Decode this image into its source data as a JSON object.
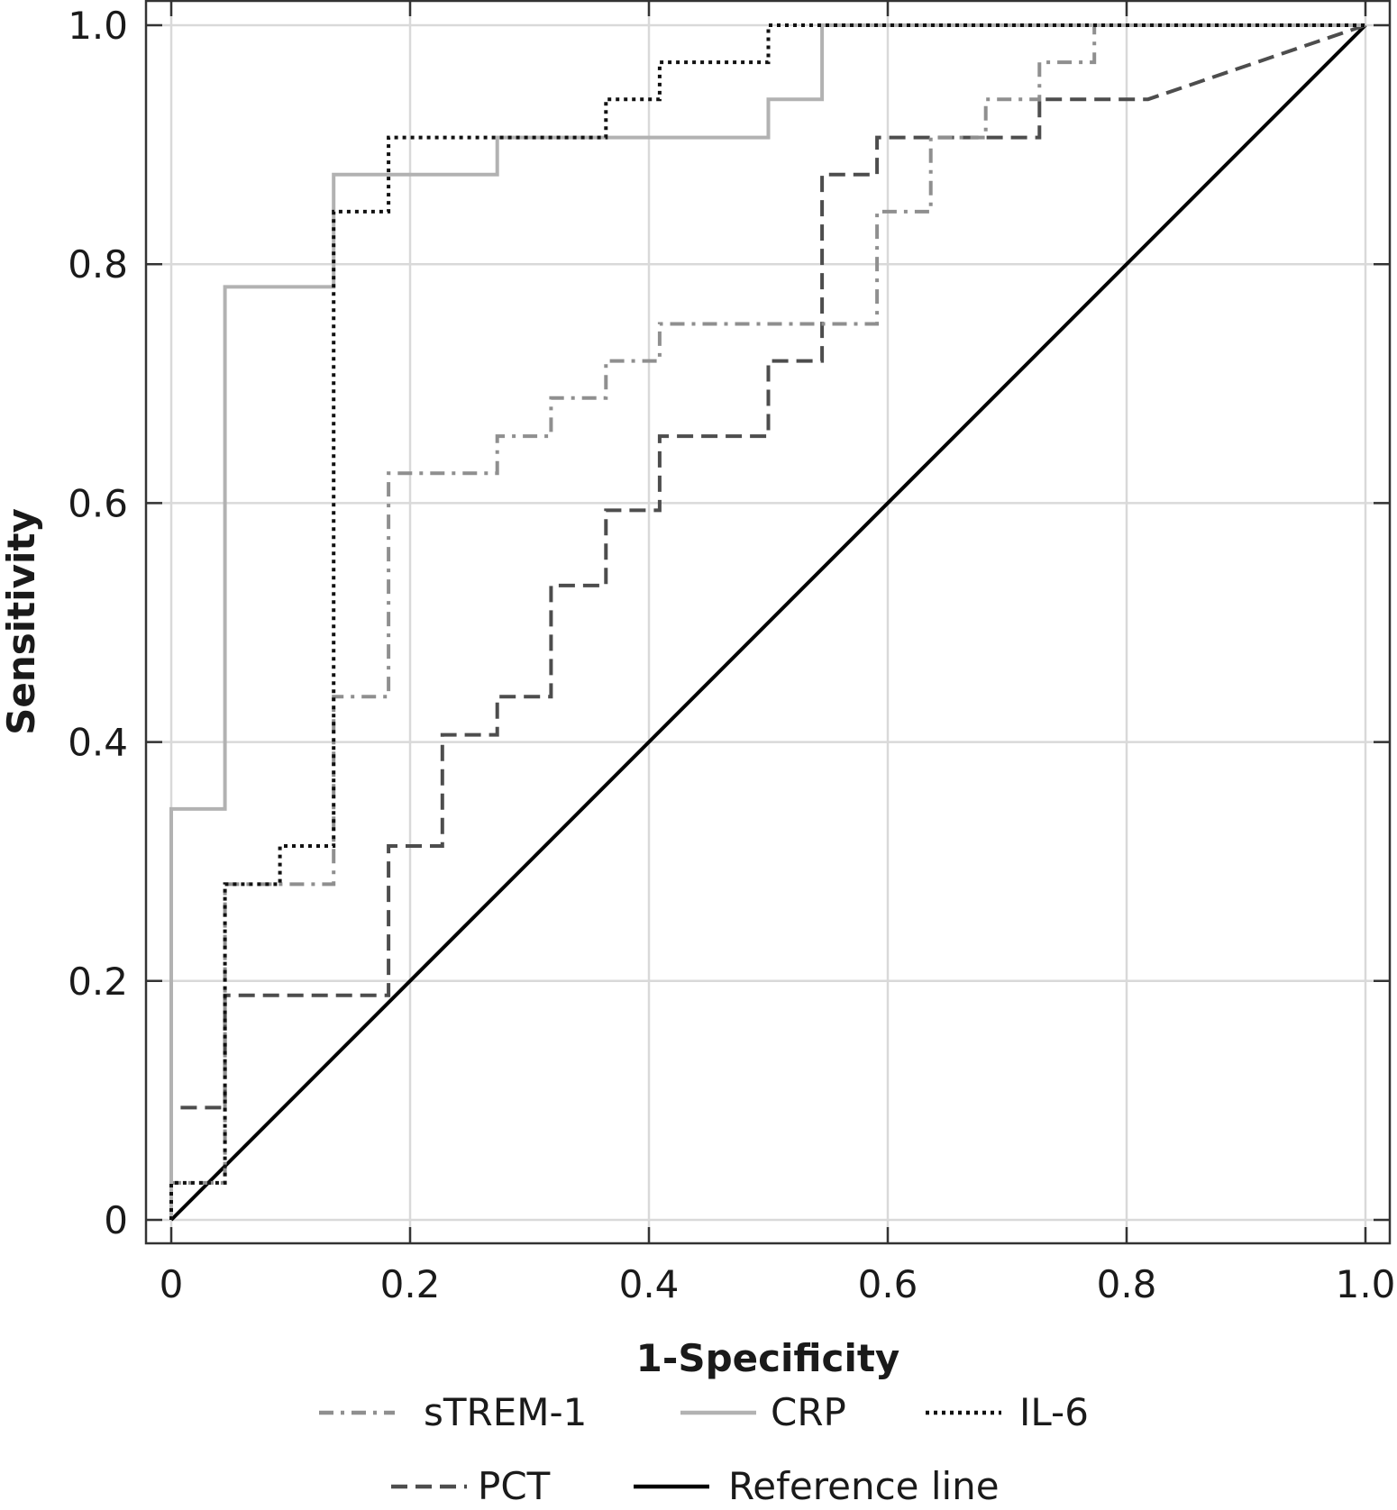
{
  "chart_data": {
    "type": "line",
    "title": "",
    "xlabel": "1-Specificity",
    "ylabel": "Sensitivity",
    "xlim": [
      0,
      1
    ],
    "ylim": [
      0,
      1
    ],
    "grid": true,
    "legend_position": "bottom",
    "x_ticks": [
      0,
      0.2,
      0.4,
      0.6,
      0.8,
      1.0
    ],
    "x_tick_labels": [
      "0",
      "0.2",
      "0.4",
      "0.6",
      "0.8",
      "1.0"
    ],
    "y_ticks": [
      0,
      0.2,
      0.4,
      0.6,
      0.8,
      1.0
    ],
    "y_tick_labels": [
      "0",
      "0.2",
      "0.4",
      "0.6",
      "0.8",
      "1.0"
    ],
    "series": [
      {
        "name": "sTREM-1",
        "color": "#8f8f8f",
        "style": "dashdot",
        "x": [
          0,
          0,
          0.045,
          0.045,
          0.136,
          0.136,
          0.182,
          0.182,
          0.273,
          0.273,
          0.318,
          0.318,
          0.364,
          0.364,
          0.409,
          0.409,
          0.591,
          0.591,
          0.636,
          0.636,
          0.682,
          0.682,
          0.727,
          0.727,
          0.773,
          0.773,
          1.0
        ],
        "y": [
          0,
          0.031,
          0.031,
          0.281,
          0.281,
          0.438,
          0.438,
          0.625,
          0.625,
          0.656,
          0.656,
          0.688,
          0.688,
          0.719,
          0.719,
          0.75,
          0.75,
          0.844,
          0.844,
          0.906,
          0.906,
          0.938,
          0.938,
          0.969,
          0.969,
          1.0,
          1.0
        ]
      },
      {
        "name": "CRP",
        "color": "#b2b2b2",
        "style": "solid",
        "x": [
          0,
          0,
          0.045,
          0.045,
          0.136,
          0.136,
          0.273,
          0.273,
          0.5,
          0.5,
          0.545,
          0.545,
          1.0
        ],
        "y": [
          0,
          0.344,
          0.344,
          0.781,
          0.781,
          0.875,
          0.875,
          0.906,
          0.906,
          0.938,
          0.938,
          1.0,
          1.0
        ]
      },
      {
        "name": "IL-6",
        "color": "#111111",
        "style": "dotted",
        "x": [
          0,
          0,
          0.045,
          0.045,
          0.091,
          0.091,
          0.136,
          0.136,
          0.182,
          0.182,
          0.364,
          0.364,
          0.409,
          0.409,
          0.5,
          0.5,
          1.0
        ],
        "y": [
          0,
          0.031,
          0.031,
          0.281,
          0.281,
          0.313,
          0.313,
          0.844,
          0.844,
          0.906,
          0.906,
          0.938,
          0.938,
          0.969,
          0.969,
          1.0,
          1.0
        ]
      },
      {
        "name": "PCT",
        "color": "#4d4d4d",
        "style": "dashed",
        "x": [
          0,
          0,
          0.045,
          0.045,
          0.182,
          0.182,
          0.227,
          0.227,
          0.273,
          0.273,
          0.318,
          0.318,
          0.364,
          0.364,
          0.409,
          0.409,
          0.5,
          0.5,
          0.545,
          0.545,
          0.591,
          0.591,
          0.727,
          0.727,
          0.818,
          1.0
        ],
        "y": [
          0,
          0.094,
          0.094,
          0.188,
          0.188,
          0.313,
          0.313,
          0.406,
          0.406,
          0.438,
          0.438,
          0.531,
          0.531,
          0.594,
          0.594,
          0.656,
          0.656,
          0.719,
          0.719,
          0.875,
          0.875,
          0.906,
          0.906,
          0.938,
          0.938,
          1.0
        ]
      },
      {
        "name": "Reference line",
        "color": "#000000",
        "style": "solid",
        "x": [
          0,
          1.0
        ],
        "y": [
          0,
          1.0
        ]
      }
    ],
    "legend_rows": [
      [
        "sTREM-1",
        "CRP",
        "IL-6"
      ],
      [
        "PCT",
        "Reference line"
      ]
    ]
  }
}
